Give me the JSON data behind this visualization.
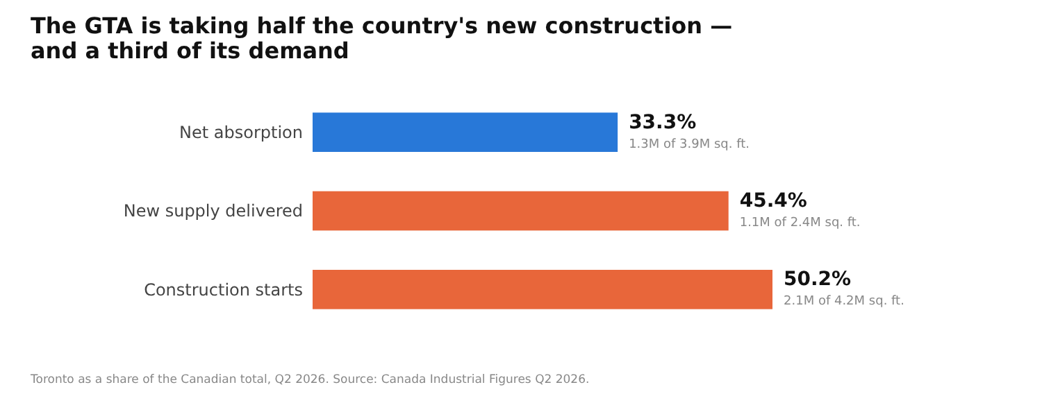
{
  "chart_data": {
    "type": "bar",
    "orientation": "horizontal",
    "title": "The GTA is taking half the country's new construction — and a third of its demand",
    "categories": [
      "Net absorption",
      "New supply delivered",
      "Construction starts"
    ],
    "values": [
      33.3,
      45.4,
      50.2
    ],
    "colors": [
      "#2878d8",
      "#e8663a",
      "#e8663a"
    ],
    "value_labels": [
      "33.3%",
      "45.4%",
      "50.2%"
    ],
    "annotations": [
      {
        "text": "1.3M of 3.9M sq. ft.",
        "x": 33.3,
        "y": "Net absorption"
      },
      {
        "text": "1.1M of 2.4M sq. ft.",
        "x": 45.4,
        "y": "New supply delivered"
      },
      {
        "text": "2.1M of 4.2M sq. ft.",
        "x": 50.2,
        "y": "Construction starts"
      },
      "Toronto as a share of the Canadian total, Q2 2026. Source: Canada Industrial Figures Q2 2026."
    ]
  }
}
